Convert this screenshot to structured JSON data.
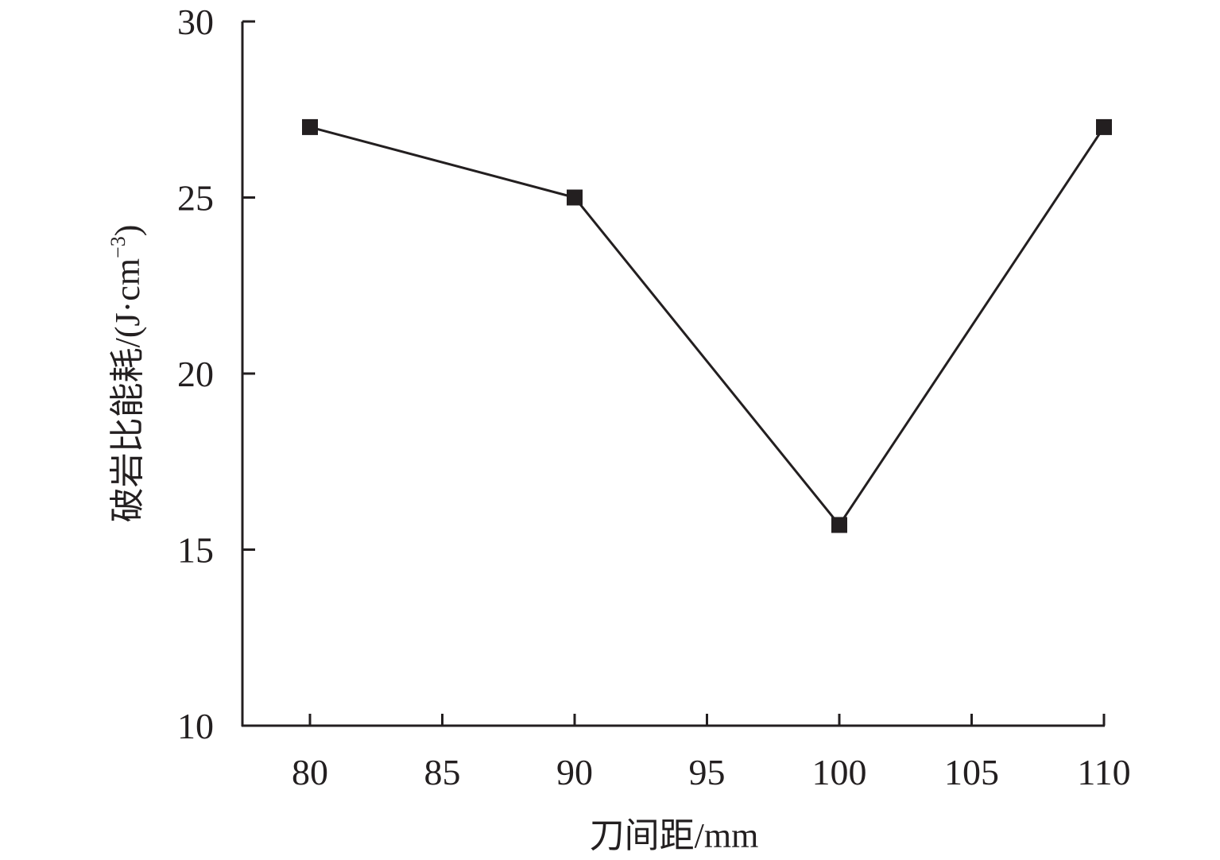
{
  "chart_data": {
    "type": "line",
    "title": "",
    "xlabel": "刀间距/mm",
    "ylabel_main": "破岩比能耗/",
    "ylabel_unit": "(J·cm",
    "ylabel_sup": "−3",
    "ylabel_close": ")",
    "ylabel": "破岩比能耗/(J·cm−3)",
    "xlim": [
      77.5,
      110
    ],
    "ylim": [
      10,
      30
    ],
    "xticks": [
      80,
      85,
      90,
      95,
      100,
      105,
      110
    ],
    "xtick_labels": [
      "80",
      "85",
      "90",
      "95",
      "100",
      "105",
      "110"
    ],
    "yticks": [
      10,
      15,
      20,
      25,
      30
    ],
    "ytick_labels": [
      "10",
      "15",
      "20",
      "25",
      "30"
    ],
    "grid": false,
    "series": [
      {
        "name": "破岩比能耗",
        "marker": "square",
        "color": "#231f20",
        "x": [
          80,
          90,
          100,
          110
        ],
        "y": [
          27.0,
          25.0,
          15.7,
          27.0
        ]
      }
    ]
  }
}
